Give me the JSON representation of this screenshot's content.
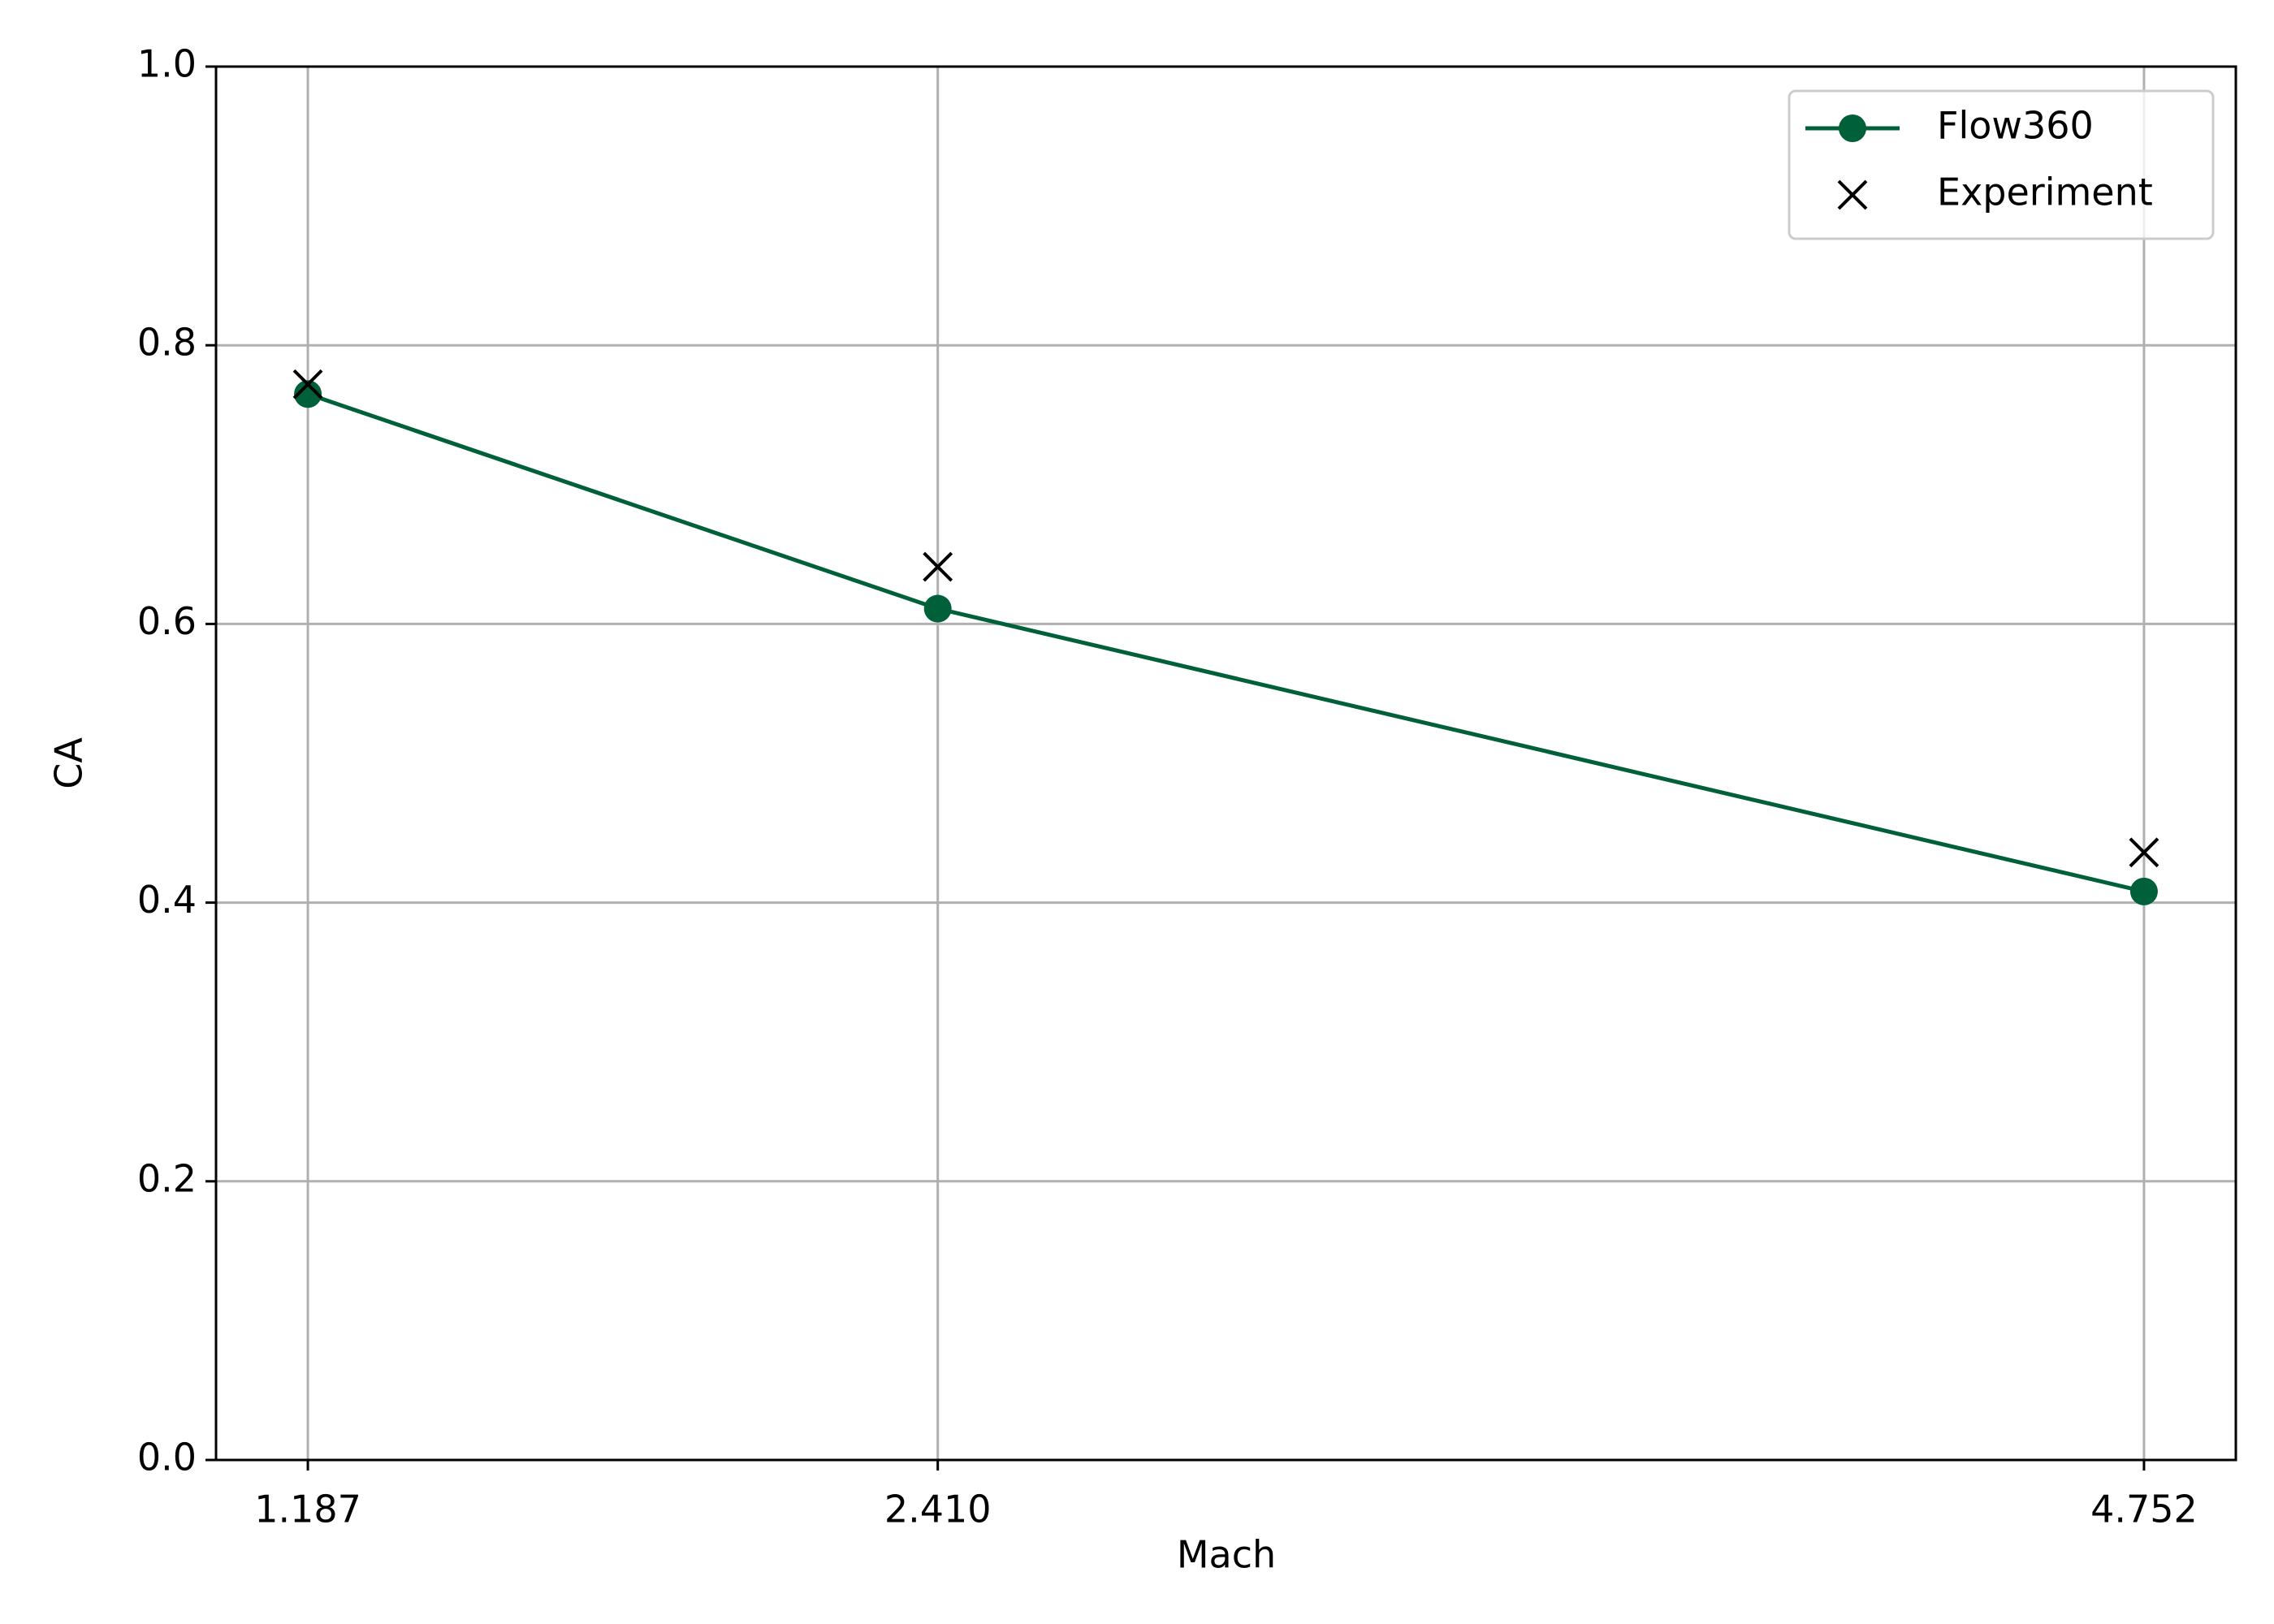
{
  "chart_data": {
    "type": "line",
    "x_label": "Mach",
    "y_label": "CA",
    "x": [
      1.187,
      2.41,
      4.752
    ],
    "series": [
      {
        "name": "Flow360",
        "color": "#006039",
        "marker": "o",
        "line": true,
        "values": [
          0.765,
          0.611,
          0.408
        ]
      },
      {
        "name": "Experiment",
        "color": "#000000",
        "marker": "x",
        "line": false,
        "values": [
          0.772,
          0.641,
          0.436
        ]
      }
    ],
    "xlim": [
      1.0087,
      4.9303
    ],
    "xticks": [
      1.187,
      {
        "value": 2.41,
        "label": "2.410"
      },
      4.752
    ],
    "ylim": [
      0,
      1
    ],
    "yticks": [
      {
        "value": 0,
        "label": "0.0"
      },
      0.2,
      0.4,
      0.6,
      0.8,
      {
        "value": 1,
        "label": "1.0"
      }
    ],
    "grid": true,
    "legend": "upper right"
  }
}
